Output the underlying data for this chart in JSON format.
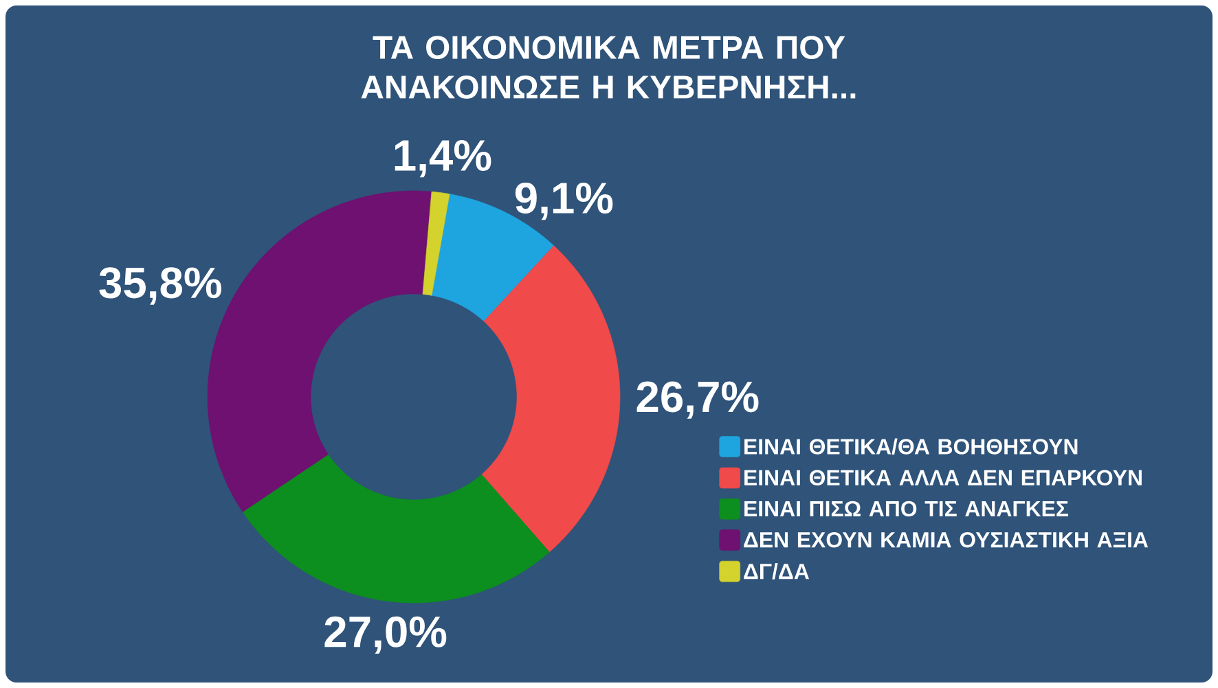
{
  "chart_data": {
    "type": "donut",
    "title": "ΤΑ ΟΙΚΟΝΟΜΙΚΑ ΜΕΤΡΑ ΠΟΥ ΑΝΑΚΟΙΝΩΣΕ Η ΚΥΒΕΡΝΗΣΗ...",
    "categories": [
      "ΕΙΝΑΙ ΘΕΤΙΚΑ/ΘΑ ΒΟΗΘΗΣΟΥΝ",
      "ΕΙΝΑΙ ΘΕΤΙΚΑ ΑΛΛΑ ΔΕΝ ΕΠΑΡΚΟΥΝ",
      "ΕΙΝΑΙ ΠΙΣΩ ΑΠΟ ΤΙΣ ΑΝΑΓΚΕΣ",
      "ΔΕΝ ΕΧΟΥΝ ΚΑΜΙΑ ΟΥΣΙΑΣΤΙΚΗ ΑΞΙΑ",
      "ΔΓ/ΔΑ"
    ],
    "values": [
      9.1,
      26.7,
      27.0,
      35.8,
      1.4
    ],
    "colors": [
      "#1ea5df",
      "#f04a4a",
      "#0c8f1e",
      "#6e1170",
      "#d4d22c"
    ],
    "value_labels": [
      "9,1%",
      "26,7%",
      "27,0%",
      "35,8%",
      "1,4%"
    ],
    "legend": "right"
  }
}
